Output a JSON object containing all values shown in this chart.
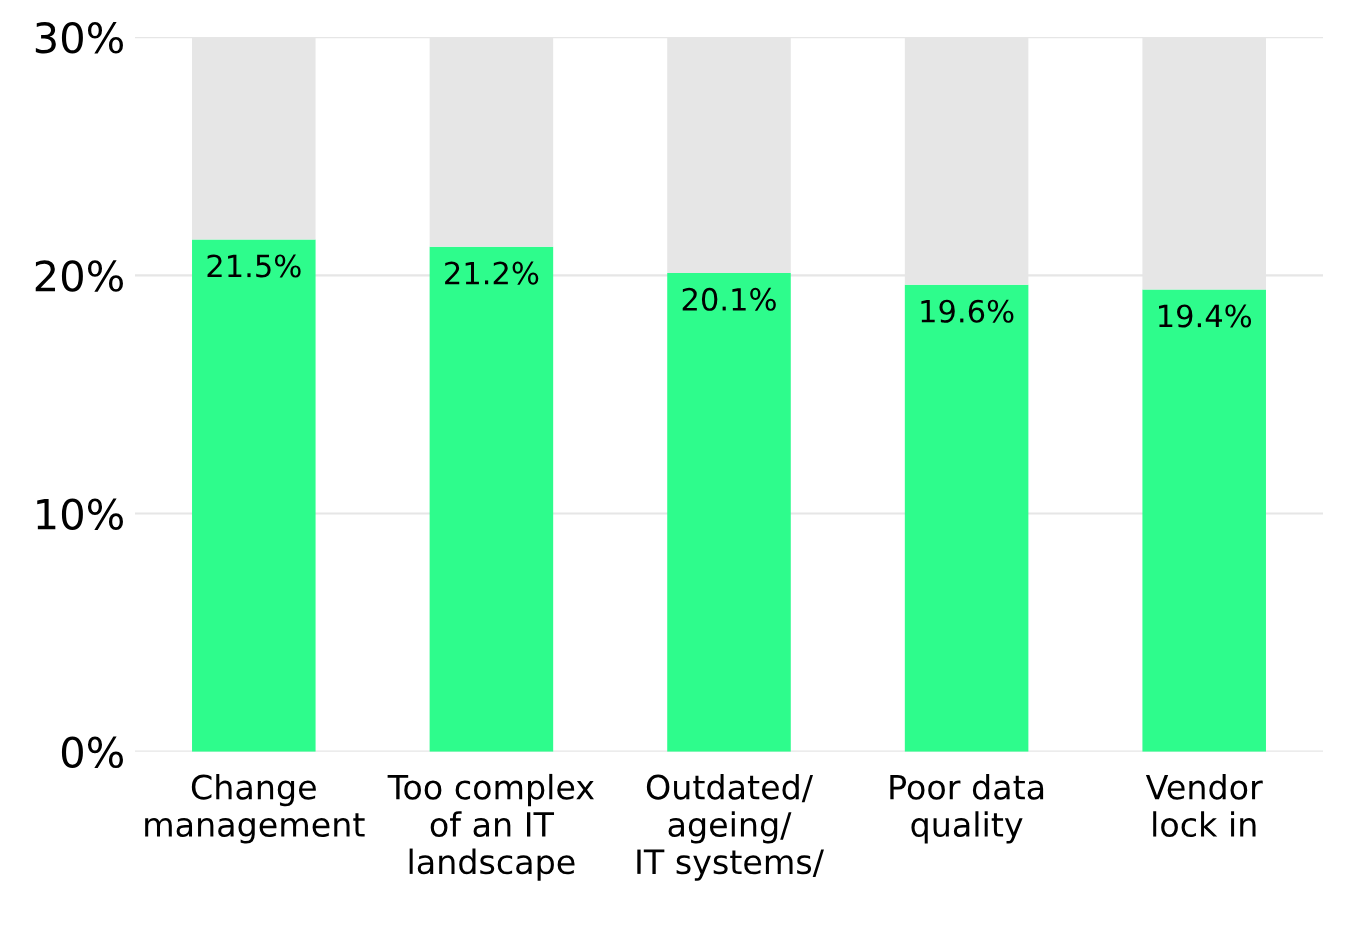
{
  "chart_data": {
    "type": "bar",
    "stacked": true,
    "categories": [
      "Change\nmanagement",
      "Too complex\nof an IT\nlandscape",
      "Outdated/\nageing/\nIT systems/",
      "Poor data\nquality",
      "Vendor\nlock in"
    ],
    "series": [
      {
        "color": "#2efc8c",
        "values": [
          21.5,
          21.2,
          20.1,
          19.6,
          19.4
        ],
        "value_labels": [
          "21.5%",
          "21.2%",
          "20.1%",
          "19.6%",
          "19.4%"
        ]
      },
      {
        "color": "#e6e6e6",
        "values": [
          8.5,
          8.8,
          9.9,
          10.4,
          10.6
        ]
      }
    ],
    "ylim": [
      0,
      30
    ],
    "yticks": [
      {
        "value": 0,
        "label": "0%"
      },
      {
        "value": 10,
        "label": "10%"
      },
      {
        "value": 20,
        "label": "20%"
      },
      {
        "value": 30,
        "label": "30%"
      }
    ],
    "grid": "y"
  }
}
